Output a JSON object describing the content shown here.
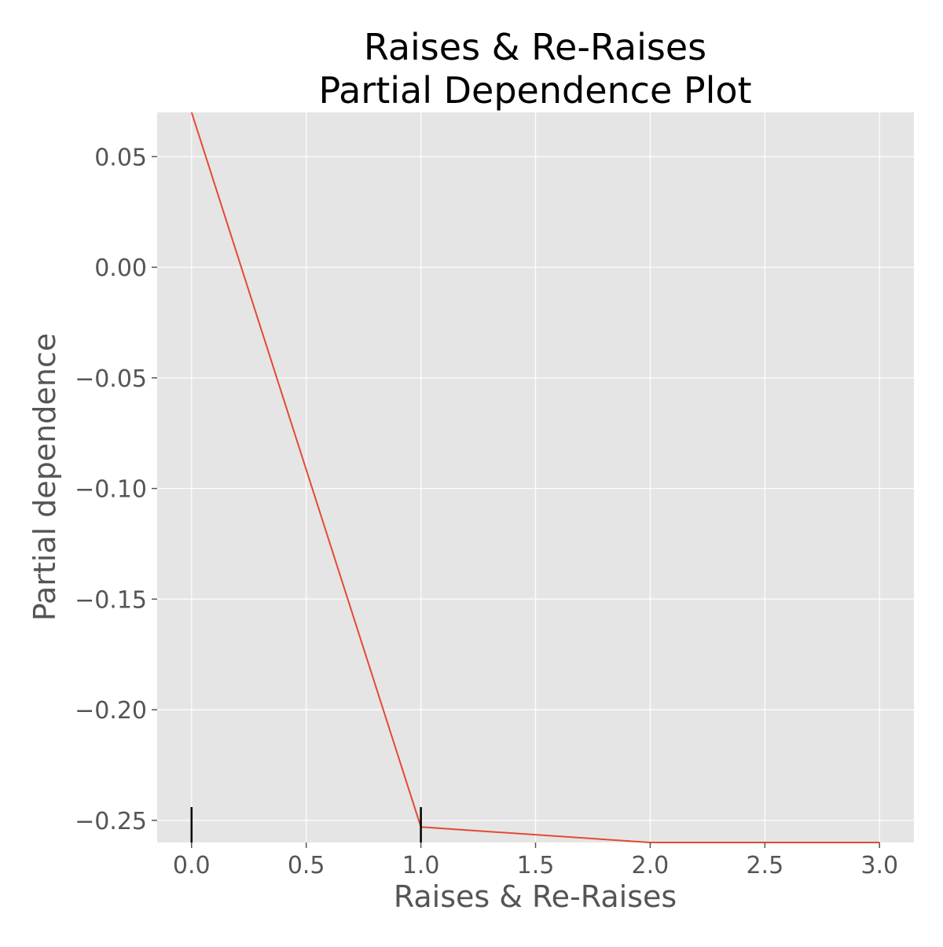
{
  "chart_data": {
    "type": "line",
    "title": [
      "Raises & Re-Raises",
      "Partial Dependence Plot"
    ],
    "xlabel": "Raises & Re-Raises",
    "ylabel": "Partial dependence",
    "xlim": [
      -0.15,
      3.15
    ],
    "ylim": [
      -0.26,
      0.07
    ],
    "x_ticks": [
      0.0,
      0.5,
      1.0,
      1.5,
      2.0,
      2.5,
      3.0
    ],
    "x_tick_labels": [
      "0.0",
      "0.5",
      "1.0",
      "1.5",
      "2.0",
      "2.5",
      "3.0"
    ],
    "y_ticks": [
      0.05,
      0.0,
      -0.05,
      -0.1,
      -0.15,
      -0.2,
      -0.25
    ],
    "y_tick_labels": [
      "0.05",
      "0.00",
      "−0.05",
      "−0.10",
      "−0.15",
      "−0.20",
      "−0.25"
    ],
    "grid": true,
    "series": [
      {
        "x": [
          0,
          1,
          2,
          3
        ],
        "y": [
          0.07,
          -0.253,
          -0.26,
          -0.26
        ]
      }
    ],
    "rug_ticks": [
      0,
      1
    ],
    "colors": {
      "background": "#E5E5E5",
      "grid": "#FFFFFF",
      "line": "#E24A33",
      "rug": "#000000"
    }
  }
}
